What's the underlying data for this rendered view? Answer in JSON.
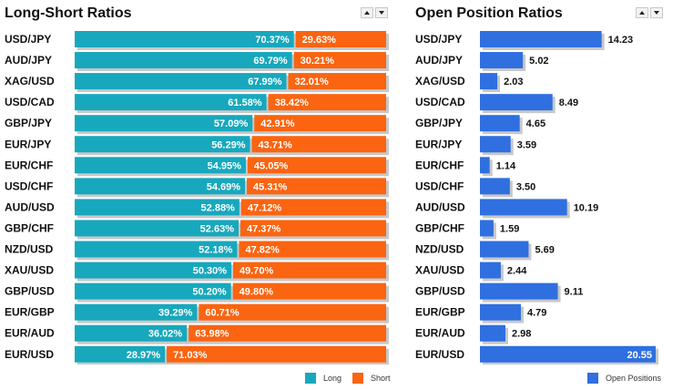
{
  "panels": {
    "long_short": {
      "title": "Long-Short Ratios"
    },
    "open_position": {
      "title": "Open Position Ratios"
    }
  },
  "colors": {
    "long": "#17a8bd",
    "short": "#fb6410",
    "open": "#2f6fe0",
    "shadow": "#c8c8c8"
  },
  "legend": {
    "long": "Long",
    "short": "Short",
    "open": "Open Positions"
  },
  "chart_data": [
    {
      "type": "bar",
      "stacked": true,
      "orientation": "horizontal",
      "title": "Long-Short Ratios",
      "categories": [
        "USD/JPY",
        "AUD/JPY",
        "XAG/USD",
        "USD/CAD",
        "GBP/JPY",
        "EUR/JPY",
        "EUR/CHF",
        "USD/CHF",
        "AUD/USD",
        "GBP/CHF",
        "NZD/USD",
        "XAU/USD",
        "GBP/USD",
        "EUR/GBP",
        "EUR/AUD",
        "EUR/USD"
      ],
      "series": [
        {
          "name": "Long",
          "values": [
            70.37,
            69.79,
            67.99,
            61.58,
            57.09,
            56.29,
            54.95,
            54.69,
            52.88,
            52.63,
            52.18,
            50.3,
            50.2,
            39.29,
            36.02,
            28.97
          ],
          "labels": [
            "70.37%",
            "69.79%",
            "67.99%",
            "61.58%",
            "57.09%",
            "56.29%",
            "54.95%",
            "54.69%",
            "52.88%",
            "52.63%",
            "52.18%",
            "50.30%",
            "50.20%",
            "39.29%",
            "36.02%",
            "28.97%"
          ]
        },
        {
          "name": "Short",
          "values": [
            29.63,
            30.21,
            32.01,
            38.42,
            42.91,
            43.71,
            45.05,
            45.31,
            47.12,
            47.37,
            47.82,
            49.7,
            49.8,
            60.71,
            63.98,
            71.03
          ],
          "labels": [
            "29.63%",
            "30.21%",
            "32.01%",
            "38.42%",
            "42.91%",
            "43.71%",
            "45.05%",
            "45.31%",
            "47.12%",
            "47.37%",
            "47.82%",
            "49.70%",
            "49.80%",
            "60.71%",
            "63.98%",
            "71.03%"
          ]
        }
      ],
      "xlim": [
        0,
        100
      ],
      "legend_position": "bottom-right"
    },
    {
      "type": "bar",
      "orientation": "horizontal",
      "title": "Open Position Ratios",
      "categories": [
        "USD/JPY",
        "AUD/JPY",
        "XAG/USD",
        "USD/CAD",
        "GBP/JPY",
        "EUR/JPY",
        "EUR/CHF",
        "USD/CHF",
        "AUD/USD",
        "GBP/CHF",
        "NZD/USD",
        "XAU/USD",
        "GBP/USD",
        "EUR/GBP",
        "EUR/AUD",
        "EUR/USD"
      ],
      "series": [
        {
          "name": "Open Positions",
          "values": [
            14.23,
            5.02,
            2.03,
            8.49,
            4.65,
            3.59,
            1.14,
            3.5,
            10.19,
            1.59,
            5.69,
            2.44,
            9.11,
            4.79,
            2.98,
            20.55
          ],
          "labels": [
            "14.23",
            "5.02",
            "2.03",
            "8.49",
            "4.65",
            "3.59",
            "1.14",
            "3.50",
            "10.19",
            "1.59",
            "5.69",
            "2.44",
            "9.11",
            "4.79",
            "2.98",
            "20.55"
          ]
        }
      ],
      "xlim": [
        0,
        20.55
      ],
      "legend_position": "bottom-right"
    }
  ]
}
